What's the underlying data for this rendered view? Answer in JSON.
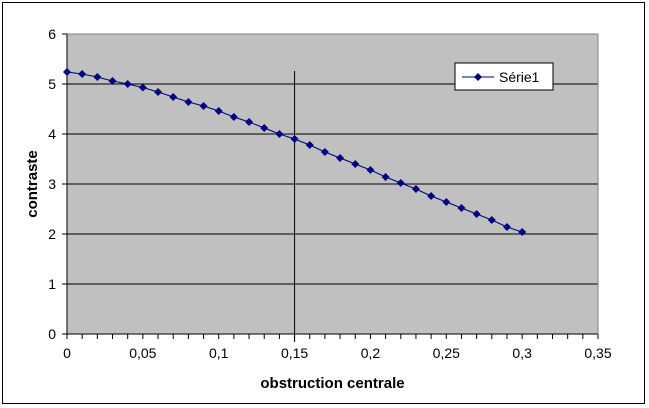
{
  "chart_data": {
    "type": "scatter",
    "title": "",
    "xlabel": "obstruction centrale",
    "ylabel": "contraste",
    "xlim": [
      0,
      0.35
    ],
    "ylim": [
      0,
      6
    ],
    "x_ticks": [
      0,
      0.05,
      0.1,
      0.15,
      0.2,
      0.25,
      0.3,
      0.35
    ],
    "x_tick_labels": [
      "0",
      "0,05",
      "0,1",
      "0,15",
      "0,2",
      "0,25",
      "0,3",
      "0,35"
    ],
    "y_ticks": [
      0,
      1,
      2,
      3,
      4,
      5,
      6
    ],
    "y_tick_labels": [
      "0",
      "1",
      "2",
      "3",
      "4",
      "5",
      "6"
    ],
    "grid": "horizontal",
    "plot_background": "#c0c0c0",
    "legend_position": "top-right",
    "reference_line_x": 0.15,
    "series": [
      {
        "name": "Série1",
        "color": "#000080",
        "marker": "diamond",
        "x": [
          0,
          0.01,
          0.02,
          0.03,
          0.04,
          0.05,
          0.06,
          0.07,
          0.08,
          0.09,
          0.1,
          0.11,
          0.12,
          0.13,
          0.14,
          0.15,
          0.16,
          0.17,
          0.18,
          0.19,
          0.2,
          0.21,
          0.22,
          0.23,
          0.24,
          0.25,
          0.26,
          0.27,
          0.28,
          0.29,
          0.3
        ],
        "y": [
          5.24,
          5.2,
          5.14,
          5.06,
          5.0,
          4.93,
          4.84,
          4.74,
          4.64,
          4.56,
          4.46,
          4.34,
          4.24,
          4.12,
          4.0,
          3.9,
          3.78,
          3.64,
          3.52,
          3.4,
          3.28,
          3.14,
          3.02,
          2.9,
          2.76,
          2.64,
          2.52,
          2.4,
          2.28,
          2.14,
          2.04
        ]
      }
    ]
  }
}
